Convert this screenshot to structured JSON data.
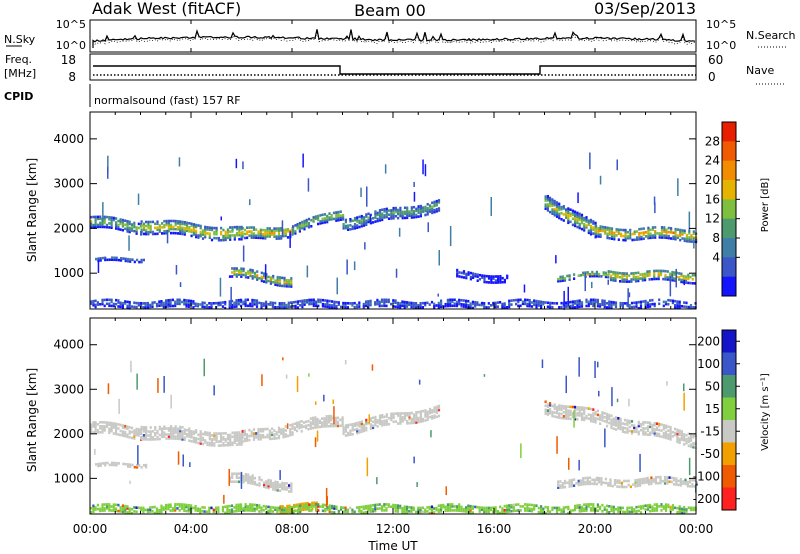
{
  "header": {
    "station": "Adak West (fitACF)",
    "beam": "Beam 00",
    "date": "03/Sep/2013"
  },
  "top_panels": {
    "left_labels": {
      "nsky": "N.Sky",
      "freq": "Freq.",
      "freq_unit": "[MHz]",
      "cpid": "CPID"
    },
    "right_labels": {
      "nsearch": "N.Search",
      "nave": "Nave"
    },
    "noise_ticks_left": [
      "10^5",
      "10^0"
    ],
    "noise_ticks_right": [
      "10^5",
      "10^0"
    ],
    "freq_ticks": [
      "18",
      "8"
    ],
    "nave_ticks": [
      "60",
      "0"
    ],
    "cpid_text": "normalsound (fast) 157 RF"
  },
  "colors": {
    "power": [
      "#1414ff",
      "#3a56c8",
      "#3f7ea6",
      "#4c9a6e",
      "#7fbf3f",
      "#e6b400",
      "#f28c00",
      "#f05a00",
      "#e81e00"
    ],
    "velocity": [
      "#ff2020",
      "#f05a00",
      "#f2a000",
      "#c8c8c4",
      "#7fcf3f",
      "#4c9a6e",
      "#3a56c8",
      "#1414c8"
    ]
  },
  "chart_data": [
    {
      "type": "heatmap",
      "title": "Power",
      "ylabel": "Slant Range [km]",
      "xlabel": "",
      "ylim": [
        200,
        4600
      ],
      "xlim": [
        "00:00",
        "24:00"
      ],
      "yticks": [
        "4000",
        "3000",
        "2000",
        "1000"
      ],
      "colorbar": {
        "label": "Power [dB]",
        "ticks": [
          "28",
          "24",
          "20",
          "16",
          "12",
          "8",
          "4"
        ],
        "range": [
          0,
          32
        ]
      },
      "scatter_bands": [
        {
          "t0": 0.0,
          "t1": 2.0,
          "r_start": 2180,
          "r_end": 2060,
          "width": 250,
          "peak_db": 19
        },
        {
          "t0": 2.0,
          "t1": 6.0,
          "r_start": 2100,
          "r_end": 1900,
          "width": 300,
          "peak_db": 23
        },
        {
          "t0": 6.0,
          "t1": 8.0,
          "r_start": 1900,
          "r_end": 2000,
          "width": 260,
          "peak_db": 25
        },
        {
          "t0": 8.0,
          "t1": 10.0,
          "r_start": 2020,
          "r_end": 2380,
          "width": 220,
          "peak_db": 20
        },
        {
          "t0": 10.0,
          "t1": 13.8,
          "r_start": 2150,
          "r_end": 2550,
          "width": 260,
          "peak_db": 15
        },
        {
          "t0": 18.0,
          "t1": 20.0,
          "r_start": 2650,
          "r_end": 1950,
          "width": 320,
          "peak_db": 22
        },
        {
          "t0": 20.0,
          "t1": 24.0,
          "r_start": 1950,
          "r_end": 1900,
          "width": 260,
          "peak_db": 26
        },
        {
          "t0": 0.2,
          "t1": 2.2,
          "r_start": 1320,
          "r_end": 1360,
          "width": 80,
          "peak_db": 8
        },
        {
          "t0": 5.5,
          "t1": 8.0,
          "r_start": 1050,
          "r_end": 850,
          "width": 200,
          "peak_db": 24
        },
        {
          "t0": 14.5,
          "t1": 16.5,
          "r_start": 1000,
          "r_end": 900,
          "width": 150,
          "peak_db": 6
        },
        {
          "t0": 18.5,
          "t1": 20.5,
          "r_start": 950,
          "r_end": 1000,
          "width": 120,
          "peak_db": 22
        },
        {
          "t0": 20.5,
          "t1": 24.0,
          "r_start": 1000,
          "r_end": 950,
          "width": 220,
          "peak_db": 25
        },
        {
          "t0": 0.0,
          "t1": 24.0,
          "r_start": 350,
          "r_end": 350,
          "width": 180,
          "peak_db": 8
        }
      ]
    },
    {
      "type": "heatmap",
      "title": "Velocity",
      "ylabel": "Slant Range [km]",
      "xlabel": "Time UT",
      "ylim": [
        200,
        4600
      ],
      "xlim": [
        "00:00",
        "24:00"
      ],
      "yticks": [
        "4000",
        "3000",
        "2000",
        "1000"
      ],
      "xticks": [
        "00:00",
        "04:00",
        "08:00",
        "12:00",
        "16:00",
        "20:00",
        "00:00"
      ],
      "colorbar": {
        "label": "Velocity [m s⁻¹]",
        "ticks": [
          "200",
          "100",
          "50",
          "15",
          "-15",
          "-50",
          "-100",
          "-200"
        ],
        "range": [
          -250,
          250
        ]
      },
      "scatter_bands": [
        {
          "t0": 0.0,
          "t1": 2.0,
          "r_start": 2180,
          "r_end": 2060,
          "width": 250,
          "vel": 0
        },
        {
          "t0": 2.0,
          "t1": 6.0,
          "r_start": 2100,
          "r_end": 1900,
          "width": 300,
          "vel": 0
        },
        {
          "t0": 6.0,
          "t1": 10.0,
          "r_start": 1950,
          "r_end": 2380,
          "width": 260,
          "vel": 0
        },
        {
          "t0": 10.0,
          "t1": 13.8,
          "r_start": 2150,
          "r_end": 2550,
          "width": 260,
          "vel": 0
        },
        {
          "t0": 18.0,
          "t1": 24.0,
          "r_start": 2650,
          "r_end": 1900,
          "width": 300,
          "vel": 0
        },
        {
          "t0": 0.2,
          "t1": 2.2,
          "r_start": 1320,
          "r_end": 1360,
          "width": 80,
          "vel": 0
        },
        {
          "t0": 5.5,
          "t1": 8.0,
          "r_start": 1050,
          "r_end": 850,
          "width": 200,
          "vel": 0
        },
        {
          "t0": 18.5,
          "t1": 24.0,
          "r_start": 950,
          "r_end": 980,
          "width": 180,
          "vel": 0
        },
        {
          "t0": 7.5,
          "t1": 9.0,
          "r_start": 380,
          "r_end": 380,
          "width": 150,
          "vel": -60
        },
        {
          "t0": 0.0,
          "t1": 24.0,
          "r_start": 350,
          "r_end": 350,
          "width": 160,
          "vel": 25
        }
      ]
    }
  ]
}
